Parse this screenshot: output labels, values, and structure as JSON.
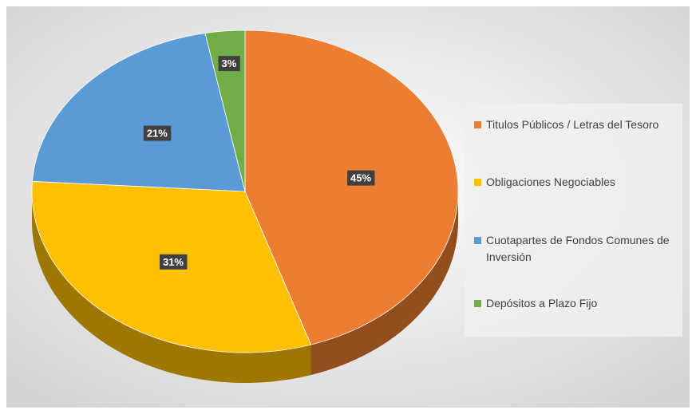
{
  "chart_data": {
    "type": "pie",
    "categories": [
      "Titulos Públicos / Letras del Tesoro",
      "Obligaciones Negociables",
      "Cuotapartes de Fondos Comunes de Inversión",
      "Depósitos a Plazo Fijo"
    ],
    "values": [
      45,
      31,
      21,
      3
    ],
    "value_labels": [
      "45%",
      "31%",
      "21%",
      "3%"
    ],
    "colors": [
      "#ed7d31",
      "#ffc000",
      "#5b9bd5",
      "#70ad47"
    ],
    "legend": "right"
  }
}
